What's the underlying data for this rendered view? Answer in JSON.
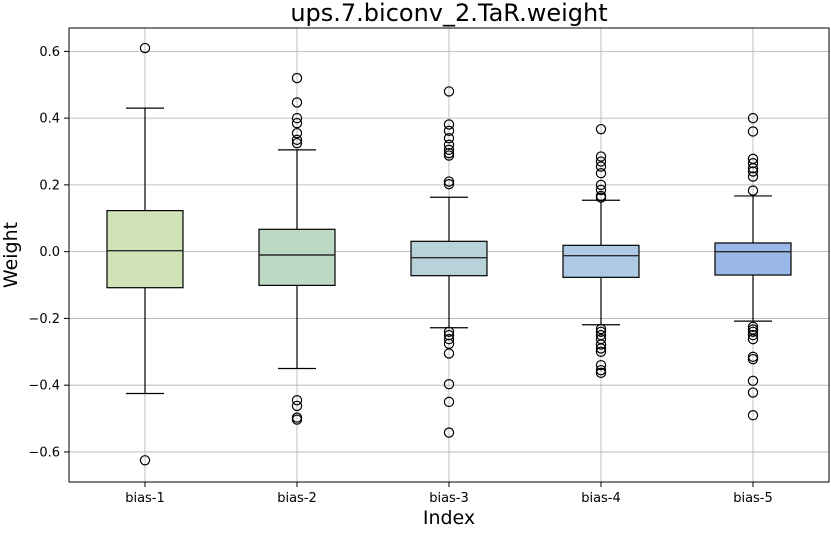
{
  "chart_data": {
    "type": "box",
    "title": "ups.7.biconv_2.TaR.weight",
    "xlabel": "Index",
    "ylabel": "Weight",
    "ylim": [
      -0.69,
      0.67
    ],
    "yticks": [
      -0.6,
      -0.4,
      -0.2,
      0.0,
      0.2,
      0.4,
      0.6
    ],
    "ytick_labels": [
      "−0.6",
      "−0.4",
      "−0.2",
      "0.0",
      "0.2",
      "0.4",
      "0.6"
    ],
    "grid": true,
    "categories": [
      "bias-1",
      "bias-2",
      "bias-3",
      "bias-4",
      "bias-5"
    ],
    "boxes": [
      {
        "label": "bias-1",
        "color": "#cfe3b6",
        "whislo": -0.425,
        "q1": -0.108,
        "med": 0.003,
        "q3": 0.123,
        "whishi": 0.43,
        "fliers": [
          0.61,
          -0.625
        ]
      },
      {
        "label": "bias-2",
        "color": "#bdd9c4",
        "whislo": -0.35,
        "q1": -0.101,
        "med": -0.01,
        "q3": 0.067,
        "whishi": 0.305,
        "fliers": [
          0.52,
          0.447,
          0.4,
          0.385,
          0.355,
          0.335,
          0.325,
          -0.445,
          -0.462,
          -0.497,
          -0.503
        ]
      },
      {
        "label": "bias-3",
        "color": "#b7d2d8",
        "whislo": -0.228,
        "q1": -0.072,
        "med": -0.018,
        "q3": 0.031,
        "whishi": 0.163,
        "fliers": [
          0.48,
          0.381,
          0.362,
          0.34,
          0.32,
          0.305,
          0.295,
          0.288,
          0.21,
          0.202,
          -0.24,
          -0.25,
          -0.262,
          -0.276,
          -0.305,
          -0.397,
          -0.45,
          -0.542
        ]
      },
      {
        "label": "bias-4",
        "color": "#aec9e3",
        "whislo": -0.219,
        "q1": -0.077,
        "med": -0.012,
        "q3": 0.019,
        "whishi": 0.154,
        "fliers": [
          0.367,
          0.285,
          0.27,
          0.255,
          0.235,
          0.2,
          0.185,
          0.167,
          0.162,
          -0.232,
          -0.24,
          -0.25,
          -0.262,
          -0.278,
          -0.29,
          -0.3,
          -0.34,
          -0.355,
          -0.363
        ]
      },
      {
        "label": "bias-5",
        "color": "#9bb9e8",
        "whislo": -0.208,
        "q1": -0.07,
        "med": 0.0,
        "q3": 0.026,
        "whishi": 0.167,
        "fliers": [
          0.4,
          0.36,
          0.278,
          0.265,
          0.25,
          0.24,
          0.225,
          0.183,
          -0.225,
          -0.233,
          -0.24,
          -0.25,
          -0.262,
          -0.315,
          -0.322,
          -0.387,
          -0.422,
          -0.49
        ]
      }
    ]
  }
}
